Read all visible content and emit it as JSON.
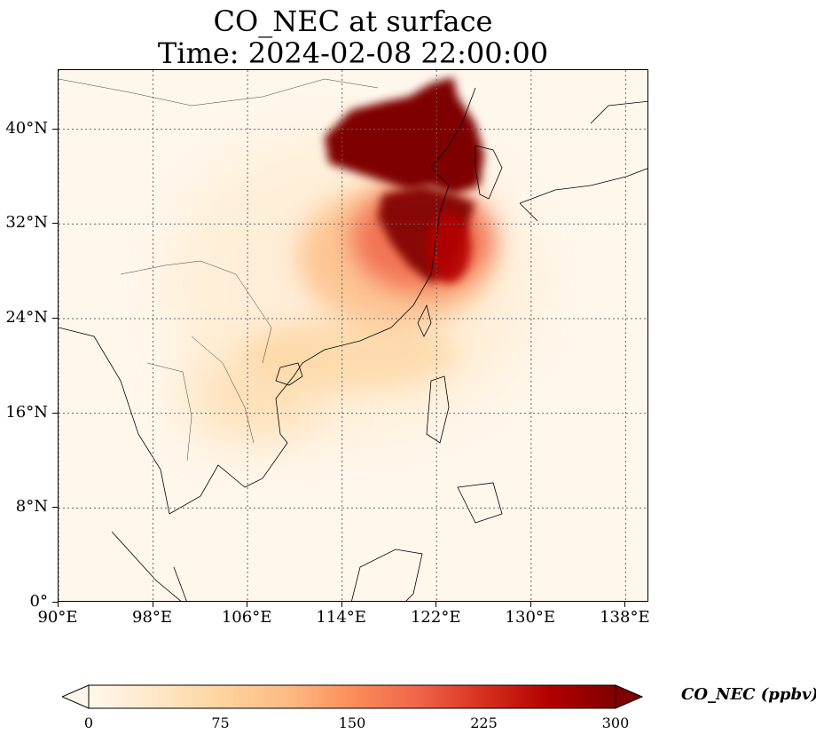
{
  "title": {
    "line1": "CO_NEC at surface",
    "line2": "Time: 2024-02-08 22:00:00"
  },
  "map": {
    "projection": "PlateCarree",
    "lon_range": [
      90,
      140
    ],
    "lat_range": [
      0,
      45
    ],
    "gridlines": true,
    "gridline_style": "dotted",
    "field_colormap": "OrRd",
    "x_ticks": [
      "90°E",
      "98°E",
      "106°E",
      "114°E",
      "122°E",
      "130°E",
      "138°E"
    ],
    "x_tick_values": [
      90,
      98,
      106,
      114,
      122,
      130,
      138
    ],
    "y_ticks": [
      "0°",
      "8°N",
      "16°N",
      "24°N",
      "32°N",
      "40°N"
    ],
    "y_tick_values": [
      0,
      8,
      16,
      24,
      32,
      40
    ]
  },
  "colorbar": {
    "label": "CO_NEC (ppbv)",
    "min": 0,
    "max": 300,
    "extend": "both",
    "tick_labels": [
      "0",
      "75",
      "150",
      "225",
      "300"
    ],
    "tick_values": [
      0,
      75,
      150,
      225,
      300
    ],
    "colors": [
      "#fff7ec",
      "#fee8c8",
      "#fdd49e",
      "#fdbb84",
      "#fc8d59",
      "#ef6548",
      "#d7301f",
      "#b30000",
      "#7f0000"
    ]
  }
}
